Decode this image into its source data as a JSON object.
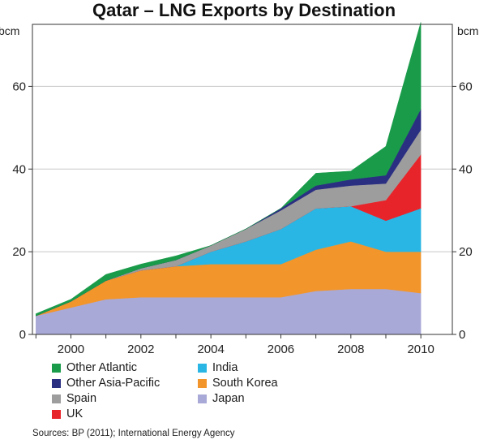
{
  "chart_data": {
    "type": "area",
    "stacked": true,
    "title": "Qatar – LNG Exports by Destination",
    "ylabel_left": "bcm",
    "ylabel_right": "bcm",
    "x": [
      1999,
      2000,
      2001,
      2002,
      2003,
      2004,
      2005,
      2006,
      2007,
      2008,
      2009,
      2010
    ],
    "xticks": [
      2000,
      2002,
      2004,
      2006,
      2008,
      2010
    ],
    "xlim": [
      1998.9,
      2010.9
    ],
    "yticks": [
      0,
      20,
      40,
      60
    ],
    "ylim": [
      0,
      75
    ],
    "grid": "horizontal",
    "legend_position": "bottom",
    "series": [
      {
        "name": "Japan",
        "color": "#a9a9d7",
        "values": [
          4.5,
          6.5,
          8.5,
          9,
          9,
          9,
          9,
          9,
          10.5,
          11,
          11,
          10
        ]
      },
      {
        "name": "South Korea",
        "color": "#f2952b",
        "values": [
          0,
          1.5,
          4.5,
          6.5,
          7.5,
          8,
          8,
          8,
          10,
          11.5,
          9,
          10
        ]
      },
      {
        "name": "India",
        "color": "#29b6e4",
        "values": [
          0,
          0,
          0,
          0,
          0,
          3,
          5.5,
          8.5,
          10,
          8.5,
          7.5,
          10.5
        ]
      },
      {
        "name": "UK",
        "color": "#e8242b",
        "values": [
          0,
          0,
          0,
          0,
          0,
          0,
          0,
          0,
          0,
          0,
          5,
          13
        ]
      },
      {
        "name": "Spain",
        "color": "#9d9d9d",
        "values": [
          0,
          0,
          0,
          0.5,
          1.5,
          1.5,
          3,
          4.5,
          4.5,
          5,
          4,
          6
        ]
      },
      {
        "name": "Other Asia-Pacific",
        "color": "#2b2f82",
        "values": [
          0,
          0,
          0,
          0,
          0,
          0,
          0,
          0.5,
          1,
          1.5,
          2,
          5
        ]
      },
      {
        "name": "Other Atlantic",
        "color": "#1a9b4a",
        "values": [
          0.5,
          0.5,
          1.5,
          1,
          1,
          0,
          0,
          0,
          3,
          2,
          7,
          21
        ]
      }
    ],
    "legend_order": [
      "Other Atlantic",
      "India",
      "Other Asia-Pacific",
      "South Korea",
      "Spain",
      "Japan",
      "UK"
    ],
    "source": "Sources: BP (2011); International Energy Agency"
  }
}
